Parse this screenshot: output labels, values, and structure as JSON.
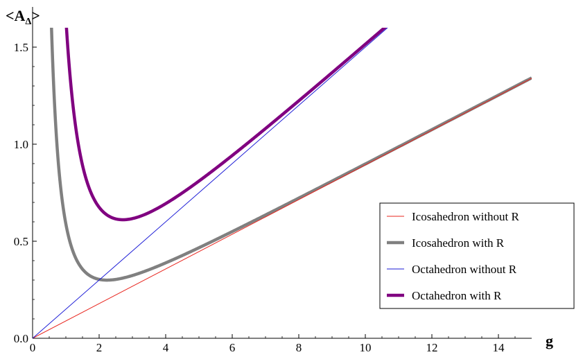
{
  "chart_data": {
    "type": "line",
    "title": "",
    "xlabel": "g",
    "ylabel": {
      "main": "<A",
      "sub": "Δ",
      "end": ">"
    },
    "xlim": [
      0,
      15
    ],
    "ylim": [
      0,
      1.6
    ],
    "xticks": [
      0,
      2,
      4,
      6,
      8,
      10,
      12,
      14
    ],
    "yticks": [
      0.0,
      0.5,
      1.0,
      1.5
    ],
    "xtick_labels": [
      "0",
      "2",
      "4",
      "6",
      "8",
      "10",
      "12",
      "14"
    ],
    "ytick_labels": [
      "0.0",
      "0.5",
      "1.0",
      "1.5"
    ],
    "grid": false,
    "legend": "bottom-right",
    "series": [
      {
        "name": "Icosahedron without R",
        "color": "#e8251e",
        "kind": "linear",
        "slope": 0.0893
      },
      {
        "name": "Icosahedron with R",
        "color": "#808080",
        "kind": "with_r",
        "slope": 0.0893,
        "coef": 0.5
      },
      {
        "name": "Octahedron without R",
        "color": "#1a1ad6",
        "kind": "linear",
        "slope": 0.15
      },
      {
        "name": "Octahedron with R",
        "color": "#800080",
        "kind": "with_r",
        "slope": 0.15,
        "coef": 1.5
      }
    ]
  }
}
